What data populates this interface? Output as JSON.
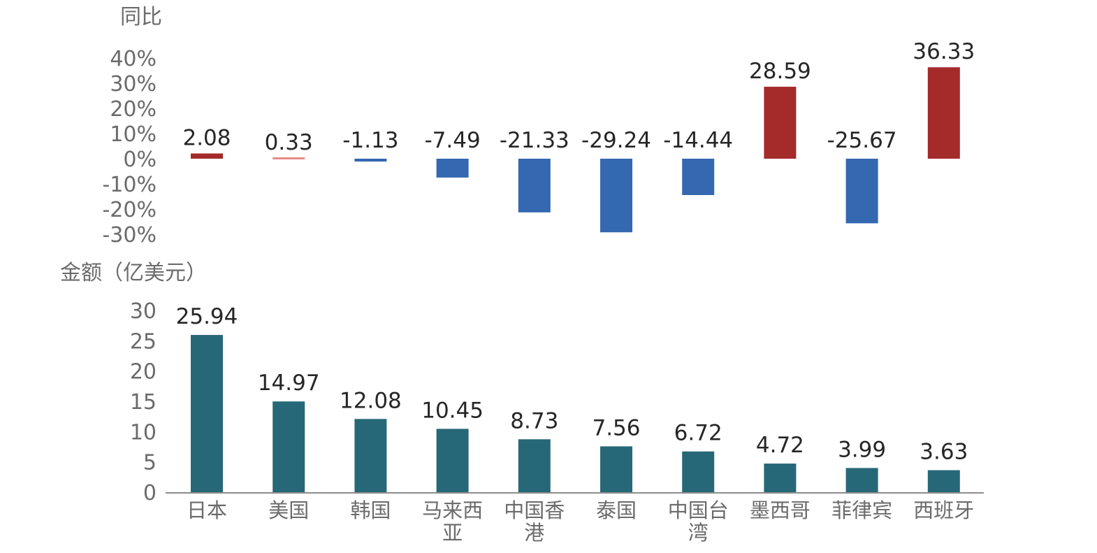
{
  "chart_data": [
    {
      "type": "bar",
      "ylabel": "同比",
      "categories": [
        "日本",
        "美国",
        "韩国",
        "马来西亚",
        "中国香港",
        "泰国",
        "中国台湾",
        "墨西哥",
        "菲律宾",
        "西班牙"
      ],
      "values": [
        2.08,
        0.33,
        -1.13,
        -7.49,
        -21.33,
        -29.24,
        -14.44,
        28.59,
        -25.67,
        36.33
      ],
      "value_labels": [
        "2.08",
        "0.33",
        "-1.13",
        "-7.49",
        "-21.33",
        "-29.24",
        "-14.44",
        "28.59",
        "-25.67",
        "36.33"
      ],
      "yticks": [
        "40%",
        "30%",
        "20%",
        "10%",
        "0%",
        "-10%",
        "-20%",
        "-30%"
      ],
      "ytick_values": [
        40,
        30,
        20,
        10,
        0,
        -10,
        -20,
        -30
      ],
      "ylim": [
        -30,
        40
      ],
      "colors": {
        "positive": "#a52a2a",
        "negative": "#3468b0",
        "small_positive": "#e88a8a"
      }
    },
    {
      "type": "bar",
      "ylabel": "金额（亿美元）",
      "categories": [
        "日本",
        "美国",
        "韩国",
        "马来西亚",
        "中国香港",
        "泰国",
        "中国台湾",
        "墨西哥",
        "菲律宾",
        "西班牙"
      ],
      "category_lines": [
        [
          "日本"
        ],
        [
          "美国"
        ],
        [
          "韩国"
        ],
        [
          "马来西",
          "亚"
        ],
        [
          "中国香",
          "港"
        ],
        [
          "泰国"
        ],
        [
          "中国台",
          "湾"
        ],
        [
          "墨西哥"
        ],
        [
          "菲律宾"
        ],
        [
          "西班牙"
        ]
      ],
      "values": [
        25.94,
        14.97,
        12.08,
        10.45,
        8.73,
        7.56,
        6.72,
        4.72,
        3.99,
        3.63
      ],
      "value_labels": [
        "25.94",
        "14.97",
        "12.08",
        "10.45",
        "8.73",
        "7.56",
        "6.72",
        "4.72",
        "3.99",
        "3.63"
      ],
      "yticks": [
        "30",
        "25",
        "20",
        "15",
        "10",
        "5",
        "0"
      ],
      "ytick_values": [
        30,
        25,
        20,
        15,
        10,
        5,
        0
      ],
      "ylim": [
        0,
        30
      ],
      "colors": {
        "bar": "#276878",
        "axis": "#8c8c8c"
      }
    }
  ]
}
